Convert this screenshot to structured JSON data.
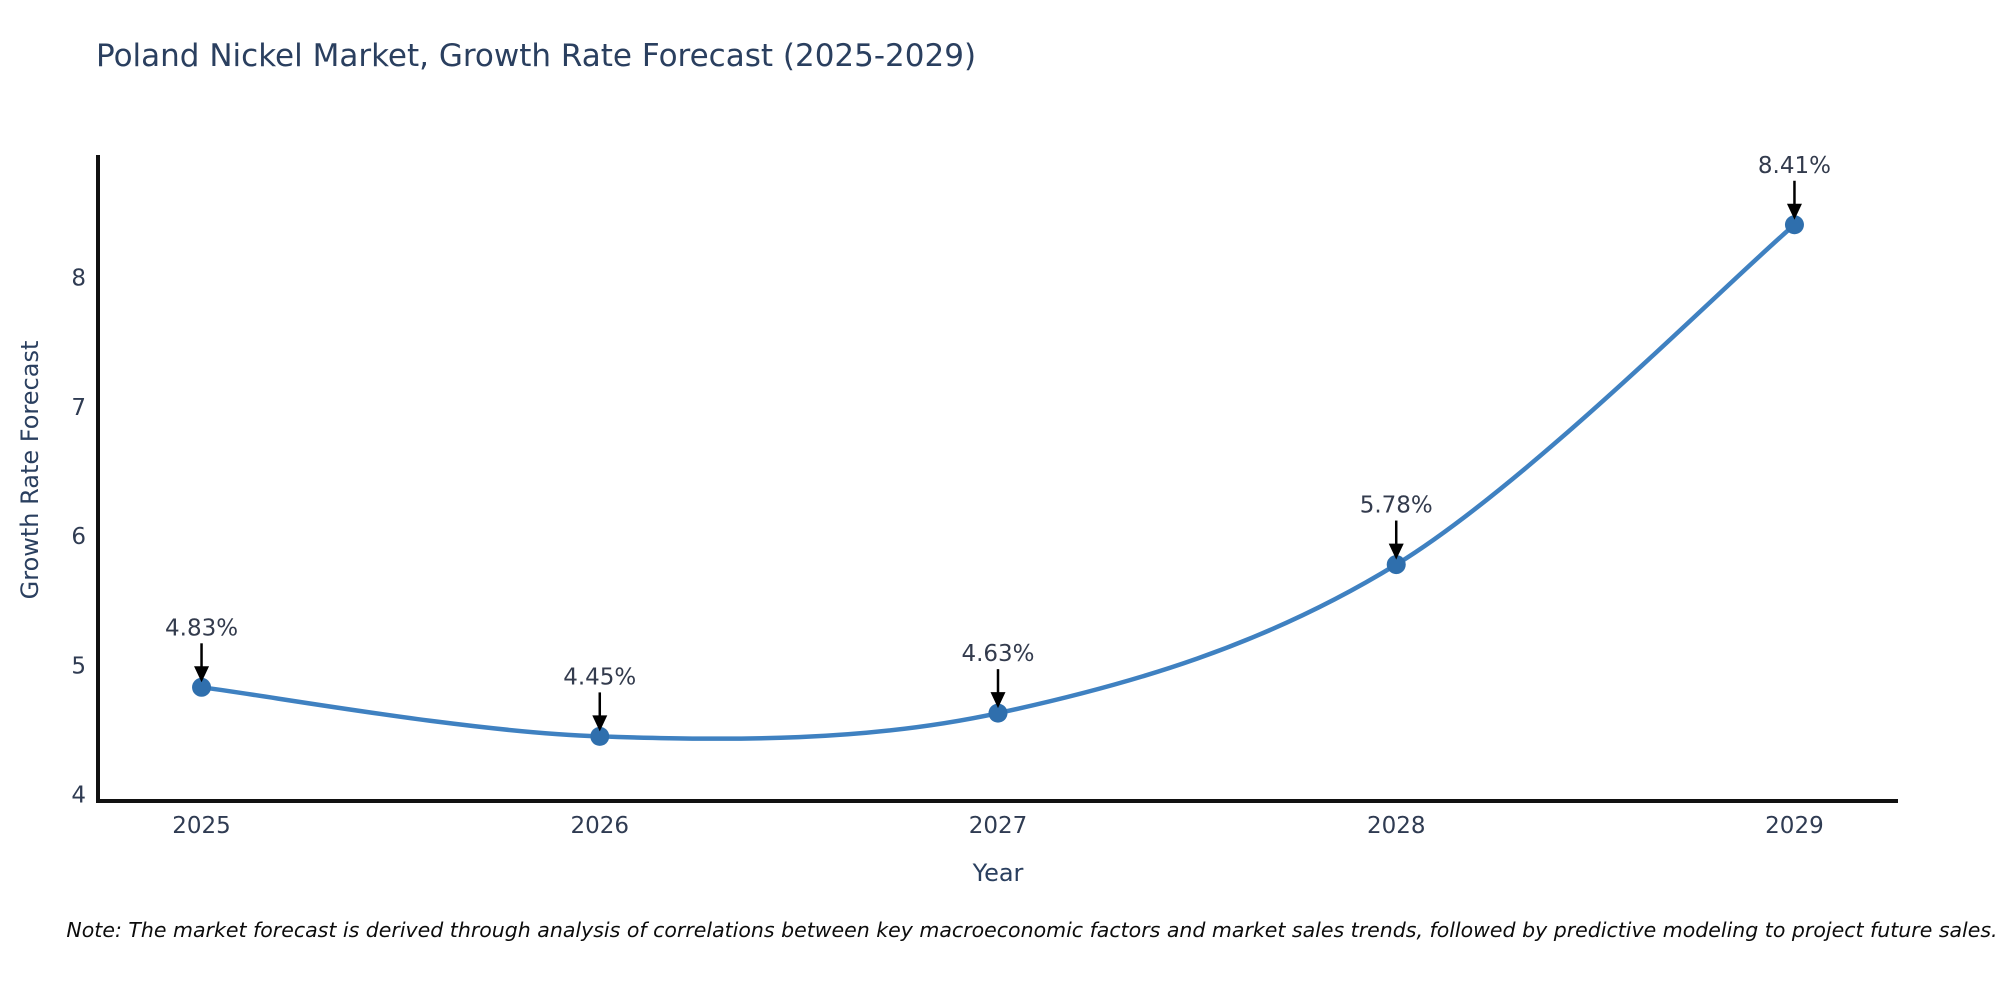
{
  "note": "Note: The market forecast is derived through analysis of correlations between key macroeconomic factors and market sales trends, followed by predictive modeling to project future sales.",
  "chart_data": {
    "type": "line",
    "title": "Poland Nickel Market, Growth Rate Forecast (2025-2029)",
    "x": [
      2025,
      2026,
      2027,
      2028,
      2029
    ],
    "values": [
      4.83,
      4.45,
      4.63,
      5.78,
      8.41
    ],
    "labels": [
      "4.83%",
      "4.45%",
      "4.63%",
      "5.78%",
      "8.41%"
    ],
    "xlabel": "Year",
    "ylabel": "Growth Rate Forecast",
    "yticks": [
      4,
      5,
      6,
      7,
      8
    ],
    "ylim": [
      3.95,
      8.95
    ],
    "xlim": [
      2024.74,
      2029.26
    ],
    "grid": false,
    "legend": "none",
    "line_color": "#3f81c1",
    "marker_color": "#2f6fad",
    "axis_color": "#111111",
    "text_color": "#2f3b52",
    "annotation_color": "#333b4d",
    "annotation_arrow_color": "#000000"
  }
}
